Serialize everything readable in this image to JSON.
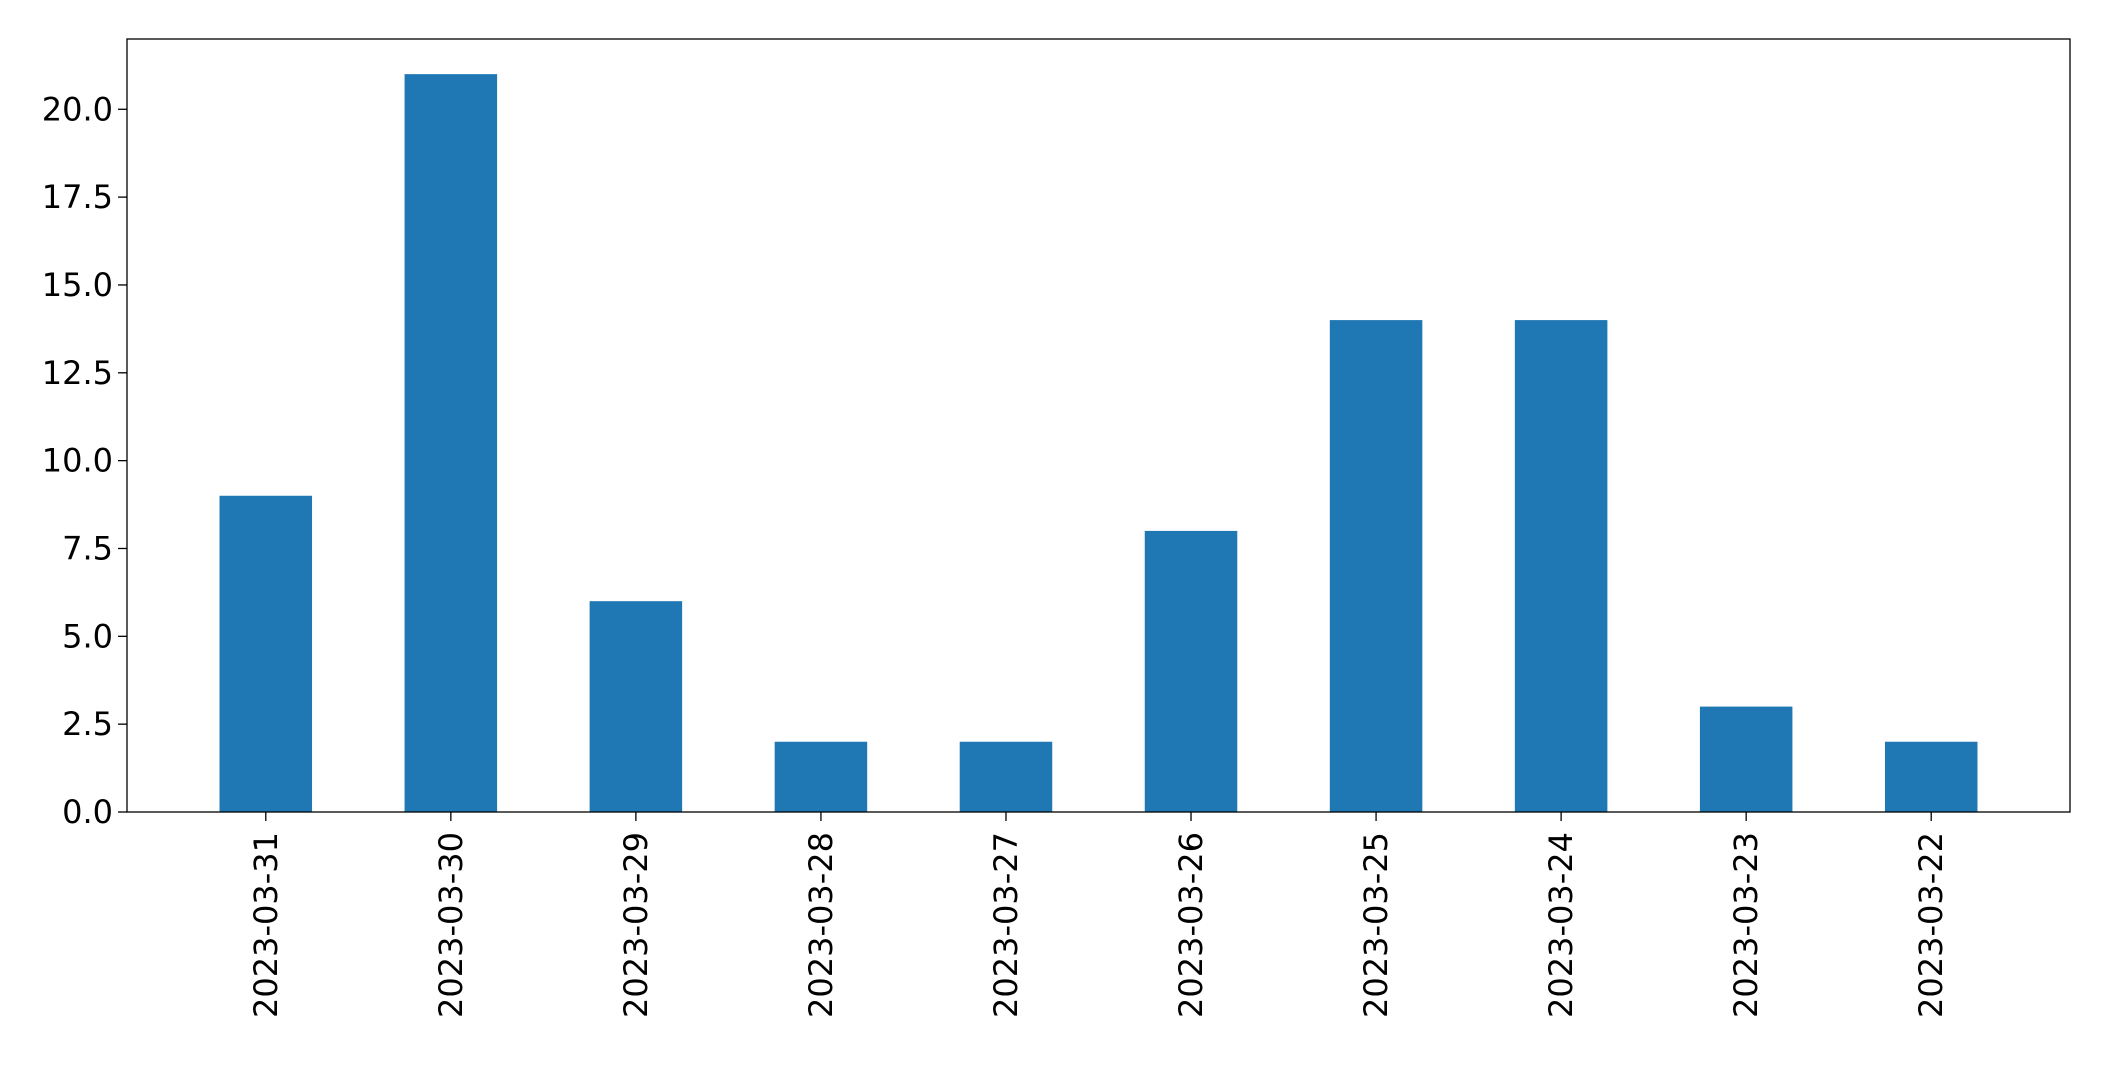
{
  "chart_data": {
    "type": "bar",
    "title": "",
    "xlabel": "",
    "ylabel": "",
    "categories": [
      "2023-03-31",
      "2023-03-30",
      "2023-03-29",
      "2023-03-28",
      "2023-03-27",
      "2023-03-26",
      "2023-03-25",
      "2023-03-24",
      "2023-03-23",
      "2023-03-22"
    ],
    "values": [
      9,
      21,
      6,
      2,
      2,
      8,
      14,
      14,
      3,
      2
    ],
    "ylim": [
      0,
      22
    ],
    "yticks": [
      0.0,
      2.5,
      5.0,
      7.5,
      10.0,
      12.5,
      15.0,
      17.5,
      20.0
    ],
    "ytick_labels": [
      "0.0",
      "2.5",
      "5.0",
      "7.5",
      "10.0",
      "12.5",
      "15.0",
      "17.5",
      "20.0"
    ],
    "grid": false,
    "legend": "none",
    "bar_color": "#1f77b4"
  }
}
